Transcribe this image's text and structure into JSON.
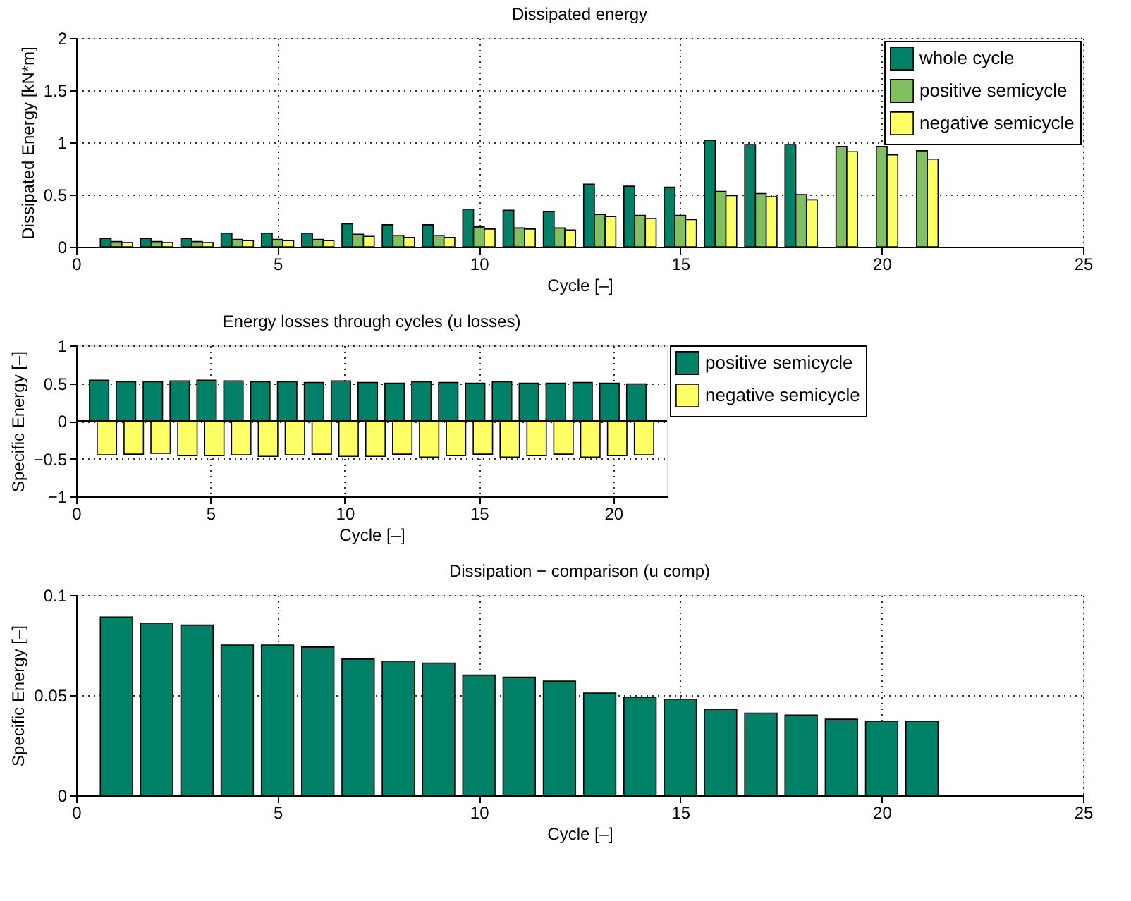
{
  "chart_data": [
    {
      "type": "bar",
      "title": "Dissipated energy",
      "xlabel": "Cycle [–]",
      "ylabel": "Dissipated Energy [kN*m]",
      "x": [
        1,
        2,
        3,
        4,
        5,
        6,
        7,
        8,
        9,
        10,
        11,
        12,
        13,
        14,
        15,
        16,
        17,
        18,
        19,
        20,
        21
      ],
      "xlim": [
        0,
        25
      ],
      "xticks": [
        0,
        5,
        10,
        15,
        20,
        25
      ],
      "ylim": [
        0,
        2
      ],
      "yticks": [
        0,
        0.5,
        1,
        1.5,
        2
      ],
      "grid": true,
      "legend": "top right",
      "series": [
        {
          "name": "whole cycle",
          "color": "#008066",
          "values": [
            0.08,
            0.08,
            0.08,
            0.13,
            0.13,
            0.13,
            0.22,
            0.21,
            0.21,
            0.36,
            0.35,
            0.34,
            0.6,
            0.58,
            0.57,
            1.02,
            0.98,
            0.98,
            null,
            null,
            null
          ]
        },
        {
          "name": "positive semicycle",
          "color": "#80c060",
          "values": [
            0.05,
            0.05,
            0.05,
            0.07,
            0.07,
            0.07,
            0.12,
            0.11,
            0.11,
            0.19,
            0.18,
            0.18,
            0.31,
            0.3,
            0.3,
            0.53,
            0.51,
            0.5,
            0.96,
            0.96,
            0.92
          ]
        },
        {
          "name": "negative semicycle",
          "color": "#ffff66",
          "values": [
            0.04,
            0.04,
            0.04,
            0.06,
            0.06,
            0.06,
            0.1,
            0.09,
            0.09,
            0.17,
            0.17,
            0.16,
            0.29,
            0.27,
            0.26,
            0.49,
            0.48,
            0.45,
            0.91,
            0.88,
            0.84
          ]
        }
      ]
    },
    {
      "type": "bar",
      "title": "Energy losses through cycles (u losses)",
      "xlabel": "Cycle [–]",
      "ylabel": "Specific Energy [–]",
      "x": [
        1,
        2,
        3,
        4,
        5,
        6,
        7,
        8,
        9,
        10,
        11,
        12,
        13,
        14,
        15,
        16,
        17,
        18,
        19,
        20,
        21
      ],
      "xlim": [
        0,
        22
      ],
      "xticks": [
        0,
        5,
        10,
        15,
        20
      ],
      "ylim": [
        -1,
        1
      ],
      "yticks": [
        -1,
        -0.5,
        0,
        0.5,
        1
      ],
      "grid": true,
      "legend": "right",
      "series": [
        {
          "name": "positive semicycle",
          "color": "#008066",
          "values": [
            0.54,
            0.52,
            0.52,
            0.53,
            0.54,
            0.53,
            0.52,
            0.52,
            0.51,
            0.53,
            0.51,
            0.5,
            0.52,
            0.51,
            0.5,
            0.52,
            0.5,
            0.5,
            0.51,
            0.5,
            0.49
          ]
        },
        {
          "name": "negative semicycle",
          "color": "#ffff66",
          "values": [
            -0.45,
            -0.44,
            -0.43,
            -0.46,
            -0.46,
            -0.45,
            -0.47,
            -0.45,
            -0.44,
            -0.47,
            -0.47,
            -0.44,
            -0.48,
            -0.46,
            -0.44,
            -0.48,
            -0.46,
            -0.44,
            -0.48,
            -0.46,
            -0.45
          ]
        }
      ]
    },
    {
      "type": "bar",
      "title": "Dissipation − comparison (u comp)",
      "xlabel": "Cycle [–]",
      "ylabel": "Specific Energy [–]",
      "x": [
        1,
        2,
        3,
        4,
        5,
        6,
        7,
        8,
        9,
        10,
        11,
        12,
        13,
        14,
        15,
        16,
        17,
        18,
        19,
        20,
        21
      ],
      "xlim": [
        0,
        25
      ],
      "xticks": [
        0,
        5,
        10,
        15,
        20,
        25
      ],
      "ylim": [
        0,
        0.1
      ],
      "yticks": [
        0,
        0.05,
        0.1
      ],
      "grid": true,
      "series": [
        {
          "color": "#008066",
          "values": [
            0.089,
            0.086,
            0.085,
            0.075,
            0.075,
            0.074,
            0.068,
            0.067,
            0.066,
            0.06,
            0.059,
            0.057,
            0.051,
            0.049,
            0.048,
            0.043,
            0.041,
            0.04,
            0.038,
            0.037,
            0.037
          ]
        }
      ]
    }
  ]
}
